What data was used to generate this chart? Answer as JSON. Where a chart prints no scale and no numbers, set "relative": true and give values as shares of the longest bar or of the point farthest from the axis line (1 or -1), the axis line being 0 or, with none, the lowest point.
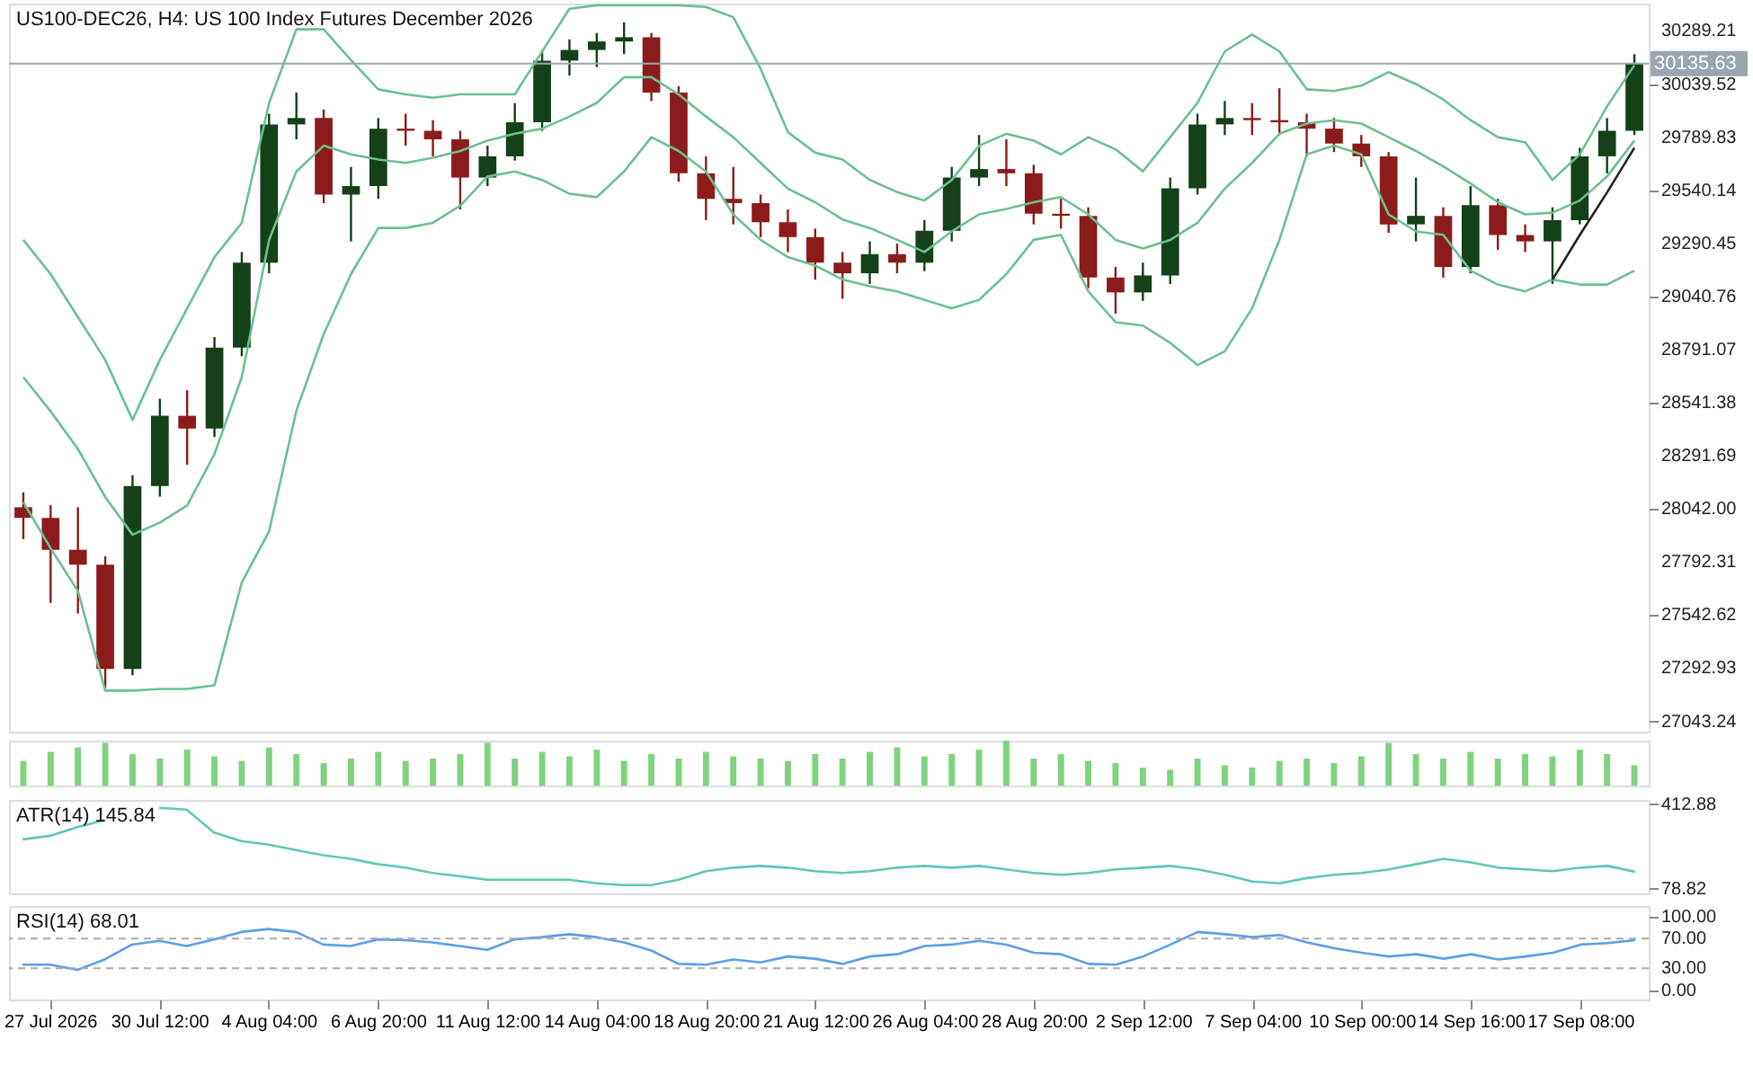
{
  "chart_data": [
    {
      "type": "candlestick",
      "title": "US100-DEC26, H4:  US 100 Index Futures December 2026",
      "categories": [
        null,
        null,
        null,
        null,
        null,
        null,
        null,
        null,
        null,
        null,
        null,
        null,
        null,
        null,
        null,
        null,
        null,
        null,
        null,
        null,
        null,
        null,
        null,
        null,
        null,
        null,
        null,
        null,
        null,
        null,
        null,
        null,
        null,
        null,
        null,
        null,
        null,
        null,
        null,
        null,
        null,
        null,
        null,
        null,
        null,
        null,
        null,
        null,
        null,
        null,
        null,
        null,
        null,
        null,
        null,
        null,
        null,
        null,
        null,
        null
      ],
      "ohlc": [
        [
          28050,
          28120,
          27900,
          28000
        ],
        [
          28000,
          28060,
          27600,
          27850
        ],
        [
          27850,
          28050,
          27550,
          27780
        ],
        [
          27780,
          27820,
          27200,
          27290
        ],
        [
          27290,
          28200,
          27260,
          28150
        ],
        [
          28150,
          28560,
          28100,
          28480
        ],
        [
          28480,
          28600,
          28250,
          28420
        ],
        [
          28420,
          28850,
          28380,
          28800
        ],
        [
          28800,
          29250,
          28760,
          29200
        ],
        [
          29200,
          29900,
          29150,
          29850
        ],
        [
          29850,
          30000,
          29780,
          29880
        ],
        [
          29880,
          29920,
          29480,
          29520
        ],
        [
          29520,
          29650,
          29300,
          29560
        ],
        [
          29560,
          29880,
          29500,
          29830
        ],
        [
          29830,
          29900,
          29750,
          29820
        ],
        [
          29820,
          29870,
          29700,
          29780
        ],
        [
          29780,
          29820,
          29450,
          29600
        ],
        [
          29600,
          29750,
          29560,
          29700
        ],
        [
          29700,
          29950,
          29680,
          29860
        ],
        [
          29860,
          30200,
          29820,
          30150
        ],
        [
          30150,
          30250,
          30080,
          30200
        ],
        [
          30200,
          30280,
          30120,
          30240
        ],
        [
          30240,
          30330,
          30180,
          30260
        ],
        [
          30260,
          30280,
          29960,
          30000
        ],
        [
          30000,
          30030,
          29580,
          29620
        ],
        [
          29620,
          29700,
          29400,
          29500
        ],
        [
          29500,
          29650,
          29380,
          29480
        ],
        [
          29480,
          29520,
          29320,
          29390
        ],
        [
          29390,
          29450,
          29250,
          29320
        ],
        [
          29320,
          29360,
          29120,
          29200
        ],
        [
          29200,
          29250,
          29030,
          29150
        ],
        [
          29150,
          29300,
          29100,
          29240
        ],
        [
          29240,
          29290,
          29150,
          29200
        ],
        [
          29200,
          29400,
          29160,
          29350
        ],
        [
          29350,
          29650,
          29300,
          29600
        ],
        [
          29600,
          29800,
          29560,
          29640
        ],
        [
          29640,
          29780,
          29560,
          29620
        ],
        [
          29620,
          29660,
          29380,
          29430
        ],
        [
          29430,
          29500,
          29360,
          29420
        ],
        [
          29420,
          29460,
          29080,
          29130
        ],
        [
          29130,
          29180,
          28960,
          29060
        ],
        [
          29060,
          29200,
          29020,
          29140
        ],
        [
          29140,
          29600,
          29100,
          29550
        ],
        [
          29550,
          29900,
          29520,
          29850
        ],
        [
          29850,
          29960,
          29800,
          29880
        ],
        [
          29880,
          29950,
          29800,
          29870
        ],
        [
          29870,
          30020,
          29800,
          29860
        ],
        [
          29860,
          29900,
          29700,
          29830
        ],
        [
          29830,
          29880,
          29720,
          29760
        ],
        [
          29760,
          29800,
          29650,
          29700
        ],
        [
          29700,
          29720,
          29340,
          29380
        ],
        [
          29380,
          29600,
          29300,
          29420
        ],
        [
          29420,
          29460,
          29130,
          29180
        ],
        [
          29180,
          29560,
          29150,
          29470
        ],
        [
          29470,
          29500,
          29260,
          29330
        ],
        [
          29330,
          29380,
          29250,
          29300
        ],
        [
          29300,
          29460,
          29100,
          29400
        ],
        [
          29400,
          29740,
          29380,
          29700
        ],
        [
          29700,
          29880,
          29620,
          29820
        ],
        [
          29820,
          30180,
          29800,
          30135.63
        ]
      ],
      "colors": [
        "#8c1c1c",
        "#8c1c1c",
        "#8c1c1c",
        "#8c1c1c",
        "#14401a",
        "#14401a",
        "#8c1c1c",
        "#14401a",
        "#14401a",
        "#14401a",
        "#14401a",
        "#8c1c1c",
        "#14401a",
        "#14401a",
        "#8c1c1c",
        "#8c1c1c",
        "#8c1c1c",
        "#14401a",
        "#14401a",
        "#14401a",
        "#14401a",
        "#14401a",
        "#14401a",
        "#8c1c1c",
        "#8c1c1c",
        "#8c1c1c",
        "#8c1c1c",
        "#8c1c1c",
        "#8c1c1c",
        "#8c1c1c",
        "#8c1c1c",
        "#14401a",
        "#8c1c1c",
        "#14401a",
        "#14401a",
        "#14401a",
        "#8c1c1c",
        "#8c1c1c",
        "#8c1c1c",
        "#8c1c1c",
        "#8c1c1c",
        "#14401a",
        "#14401a",
        "#14401a",
        "#14401a",
        "#8c1c1c",
        "#8c1c1c",
        "#8c1c1c",
        "#8c1c1c",
        "#8c1c1c",
        "#8c1c1c",
        "#14401a",
        "#8c1c1c",
        "#14401a",
        "#8c1c1c",
        "#8c1c1c",
        "#14401a",
        "#14401a",
        "#14401a",
        "#14401a"
      ],
      "series": [
        {
          "type": "line",
          "color": "#6cc091",
          "values": [
            29307,
            29146,
            28944,
            28743,
            28461,
            28743,
            28985,
            29226,
            29387,
            29951,
            30297,
            30297,
            30152,
            30015,
            29991,
            29975,
            29991,
            29991,
            29991,
            30193,
            30394,
            30410,
            30410,
            30410,
            30410,
            30402,
            30354,
            30112,
            29814,
            29717,
            29685,
            29589,
            29532,
            29492,
            29589,
            29750,
            29806,
            29774,
            29709,
            29790,
            29733,
            29629,
            29790,
            29951,
            30193,
            30273,
            30193,
            30015,
            30007,
            30032,
            30096,
            30040,
            29967,
            29870,
            29790,
            29766,
            29589,
            29709,
            29935,
            30128
          ]
        },
        {
          "type": "line",
          "color": "#6cc091",
          "values": [
            28662,
            28501,
            28324,
            28098,
            27921,
            27978,
            28058,
            28300,
            28662,
            29307,
            29629,
            29750,
            29709,
            29685,
            29669,
            29693,
            29725,
            29774,
            29806,
            29830,
            29887,
            29951,
            30072,
            30072,
            29991,
            29887,
            29790,
            29669,
            29548,
            29484,
            29403,
            29363,
            29307,
            29250,
            29347,
            29427,
            29452,
            29484,
            29508,
            29427,
            29307,
            29266,
            29307,
            29387,
            29548,
            29669,
            29806,
            29854,
            29870,
            29854,
            29790,
            29725,
            29653,
            29572,
            29484,
            29427,
            29435,
            29492,
            29605,
            29774
          ]
        },
        {
          "type": "line",
          "color": "#6cc091",
          "values": [
            28074,
            27857,
            27656,
            27188,
            27188,
            27196,
            27196,
            27213,
            27696,
            27937,
            28504,
            28864,
            29146,
            29363,
            29363,
            29387,
            29468,
            29605,
            29629,
            29589,
            29524,
            29508,
            29629,
            29790,
            29725,
            29629,
            29427,
            29307,
            29226,
            29186,
            29121,
            29089,
            29065,
            29025,
            28985,
            29025,
            29146,
            29307,
            29331,
            29065,
            28920,
            28904,
            28823,
            28719,
            28783,
            28985,
            29307,
            29709,
            29750,
            29709,
            29427,
            29347,
            29331,
            29162,
            29097,
            29065,
            29121,
            29097,
            29097,
            29162
          ]
        },
        {
          "type": "line",
          "color": "#222222",
          "values": [
            null,
            null,
            null,
            null,
            null,
            null,
            null,
            null,
            null,
            null,
            null,
            null,
            null,
            null,
            null,
            null,
            null,
            null,
            null,
            null,
            null,
            null,
            null,
            null,
            null,
            null,
            null,
            null,
            null,
            null,
            null,
            null,
            null,
            null,
            null,
            null,
            null,
            null,
            null,
            null,
            null,
            null,
            null,
            null,
            null,
            null,
            null,
            null,
            null,
            null,
            null,
            null,
            null,
            null,
            null,
            null,
            29120,
            29330,
            29530,
            29740
          ]
        }
      ],
      "ylim": [
        26995,
        30418
      ],
      "yticks": [
        30289.21,
        30039.52,
        29789.83,
        29540.14,
        29290.45,
        29040.76,
        28791.07,
        28541.38,
        {
          "value": 28291.69,
          "label": "28291.69"
        },
        {
          "value": 28042,
          "label": "28042.00"
        },
        27792.31,
        27542.62,
        27292.93,
        27043.24
      ],
      "ref_lines": [
        {
          "axis": "y",
          "value": 30135.63,
          "label": "30135.63",
          "color": "#9aa5b1"
        }
      ],
      "tick_labels": "y"
    },
    {
      "type": "bar",
      "relative": true,
      "color": "#7ed37e",
      "categories": [
        null,
        null,
        null,
        null,
        null,
        null,
        null,
        null,
        null,
        null,
        null,
        null,
        null,
        null,
        null,
        null,
        null,
        null,
        null,
        null,
        null,
        null,
        null,
        null,
        null,
        null,
        null,
        null,
        null,
        null,
        null,
        null,
        null,
        null,
        null,
        null,
        null,
        null,
        null,
        null,
        null,
        null,
        null,
        null,
        null,
        null,
        null,
        null,
        null,
        null,
        null,
        null,
        null,
        null,
        null,
        null,
        null,
        null,
        null,
        null
      ],
      "values": [
        0.55,
        0.75,
        0.85,
        0.95,
        0.7,
        0.6,
        0.8,
        0.65,
        0.55,
        0.85,
        0.7,
        0.5,
        0.6,
        0.75,
        0.55,
        0.6,
        0.7,
        0.95,
        0.6,
        0.75,
        0.65,
        0.8,
        0.55,
        0.7,
        0.6,
        0.75,
        0.65,
        0.6,
        0.55,
        0.7,
        0.6,
        0.75,
        0.85,
        0.65,
        0.7,
        0.8,
        1,
        0.6,
        0.7,
        0.55,
        0.5,
        0.4,
        0.35,
        0.6,
        0.45,
        0.4,
        0.55,
        0.6,
        0.5,
        0.65,
        0.95,
        0.7,
        0.6,
        0.75,
        0.6,
        0.7,
        0.65,
        0.8,
        0.7,
        0.45
      ],
      "tick_labels": false
    },
    {
      "type": "line",
      "title": "ATR(14) 145.84",
      "color": "#5fc8b4",
      "categories": [
        null,
        null,
        null,
        null,
        null,
        null,
        null,
        null,
        null,
        null,
        null,
        null,
        null,
        null,
        null,
        null,
        null,
        null,
        null,
        null,
        null,
        null,
        null,
        null,
        null,
        null,
        null,
        null,
        null,
        null,
        null,
        null,
        null,
        null,
        null,
        null,
        null,
        null,
        null,
        null,
        null,
        null,
        null,
        null,
        null,
        null,
        null,
        null,
        null,
        null,
        null,
        null,
        null,
        null,
        null,
        null,
        null,
        null,
        null,
        null
      ],
      "values": [
        274,
        288,
        322,
        350,
        null,
        399,
        392,
        301,
        267,
        253,
        232,
        211,
        197,
        176,
        162,
        141,
        128,
        114,
        114,
        114,
        114,
        100,
        93,
        93,
        114,
        148,
        162,
        169,
        162,
        148,
        141,
        148,
        162,
        169,
        162,
        169,
        155,
        141,
        134,
        141,
        155,
        162,
        169,
        155,
        134,
        107,
        100,
        121,
        134,
        141,
        155,
        176,
        197,
        183,
        162,
        155,
        148,
        162,
        169,
        145.84
      ],
      "ylim": [
        60,
        430
      ],
      "yticks": [
        412.88,
        78.82
      ],
      "tick_labels": "y"
    },
    {
      "type": "line",
      "title": "RSI(14) 68.01",
      "color": "#5b9ee8",
      "categories": [
        null,
        "27 Jul 2026",
        null,
        null,
        null,
        "30 Jul 12:00",
        null,
        null,
        null,
        "4 Aug 04:00",
        null,
        null,
        null,
        "6 Aug 20:00",
        null,
        null,
        null,
        "11 Aug 12:00",
        null,
        null,
        null,
        "14 Aug 04:00",
        null,
        null,
        null,
        "18 Aug 20:00",
        null,
        null,
        null,
        "21 Aug 12:00",
        null,
        null,
        null,
        "26 Aug 04:00",
        null,
        null,
        null,
        "28 Aug 20:00",
        null,
        null,
        null,
        "2 Sep 12:00",
        null,
        null,
        null,
        "7 Sep 04:00",
        null,
        null,
        null,
        "10 Sep 00:00",
        null,
        null,
        null,
        "14 Sep 16:00",
        null,
        null,
        null,
        "17 Sep 08:00",
        null,
        null
      ],
      "values": [
        35,
        35,
        28,
        42,
        62,
        67,
        60,
        69,
        79,
        83,
        79,
        62,
        60,
        69,
        68,
        65,
        60,
        55,
        69,
        72,
        76,
        72,
        65,
        54,
        36,
        35,
        42,
        38,
        46,
        43,
        36,
        46,
        49,
        60,
        62,
        67,
        62,
        51,
        49,
        36,
        35,
        46,
        62,
        79,
        76,
        72,
        75,
        65,
        57,
        51,
        46,
        49,
        43,
        49,
        42,
        46,
        51,
        62,
        64,
        68.01
      ],
      "ylim": [
        -12,
        114
      ],
      "yticks": [
        {
          "value": 100,
          "label": "100.00"
        },
        {
          "value": 70,
          "label": "70.00"
        },
        {
          "value": 30,
          "label": "30.00"
        },
        {
          "value": 0,
          "label": "0.00"
        }
      ],
      "ref_lines": [
        {
          "axis": "y",
          "value": 70,
          "color": "#aaaaaa",
          "line_style": "dashed"
        },
        {
          "axis": "y",
          "value": 30,
          "color": "#aaaaaa",
          "line_style": "dashed"
        }
      ]
    }
  ]
}
